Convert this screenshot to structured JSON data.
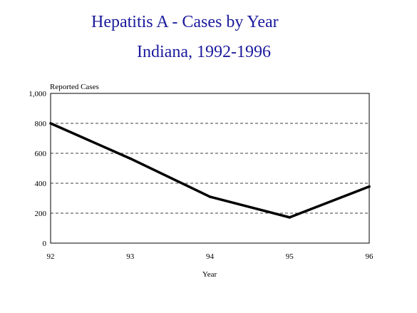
{
  "chart_data": {
    "type": "line",
    "title": "Hepatitis A - Cases by Year",
    "subtitle": "Indiana, 1992-1996",
    "xlabel": "Year",
    "ylabel": "Reported Cases",
    "categories": [
      "92",
      "93",
      "94",
      "95",
      "96"
    ],
    "series": [
      {
        "values": [
          800,
          565,
          310,
          172,
          378
        ]
      }
    ],
    "ylim": [
      0,
      1000
    ],
    "yticks": [
      0,
      200,
      400,
      600,
      800,
      1000
    ],
    "ytick_labels": [
      "0",
      "200",
      "400",
      "600",
      "800",
      "1,000"
    ],
    "grid": "horizontal dashed",
    "line_color": "#000000",
    "title_color": "#1a1a9c"
  }
}
